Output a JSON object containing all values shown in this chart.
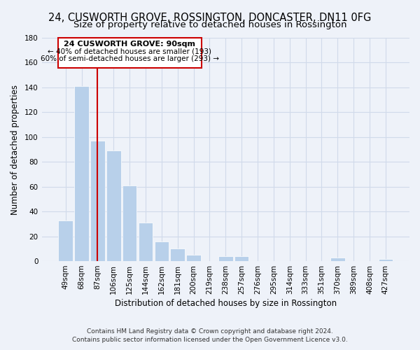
{
  "title": "24, CUSWORTH GROVE, ROSSINGTON, DONCASTER, DN11 0FG",
  "subtitle": "Size of property relative to detached houses in Rossington",
  "xlabel": "Distribution of detached houses by size in Rossington",
  "ylabel": "Number of detached properties",
  "bar_labels": [
    "49sqm",
    "68sqm",
    "87sqm",
    "106sqm",
    "125sqm",
    "144sqm",
    "162sqm",
    "181sqm",
    "200sqm",
    "219sqm",
    "238sqm",
    "257sqm",
    "276sqm",
    "295sqm",
    "314sqm",
    "333sqm",
    "351sqm",
    "370sqm",
    "389sqm",
    "408sqm",
    "427sqm"
  ],
  "bar_values": [
    33,
    141,
    97,
    89,
    61,
    31,
    16,
    10,
    5,
    0,
    4,
    4,
    0,
    0,
    0,
    0,
    0,
    3,
    0,
    0,
    2
  ],
  "bar_color": "#b8d0ea",
  "bar_edge_color": "#b8d0ea",
  "ylim": [
    0,
    180
  ],
  "yticks": [
    0,
    20,
    40,
    60,
    80,
    100,
    120,
    140,
    160,
    180
  ],
  "vline_index": 2,
  "vline_color": "#cc0000",
  "ann_line1": "24 CUSWORTH GROVE: 90sqm",
  "ann_line2": "← 40% of detached houses are smaller (193)",
  "ann_line3": "60% of semi-detached houses are larger (293) →",
  "footer_line1": "Contains HM Land Registry data © Crown copyright and database right 2024.",
  "footer_line2": "Contains public sector information licensed under the Open Government Licence v3.0.",
  "background_color": "#eef2f9",
  "grid_color": "#d0daea",
  "title_fontsize": 10.5,
  "subtitle_fontsize": 9.5,
  "axis_fontsize": 8.5,
  "tick_fontsize": 7.5,
  "footer_fontsize": 6.5
}
